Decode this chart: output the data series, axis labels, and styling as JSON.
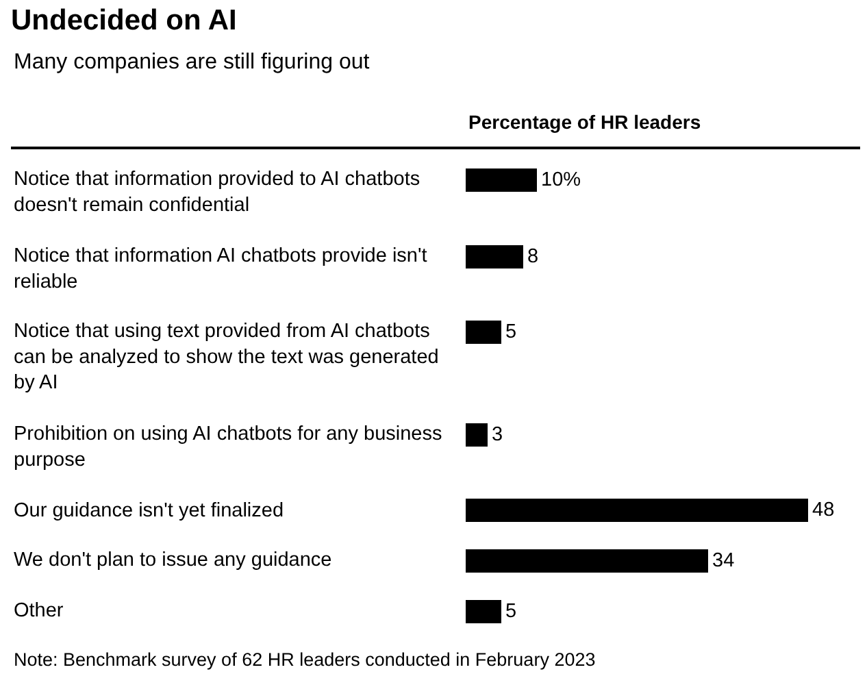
{
  "chart_data": {
    "type": "bar",
    "orientation": "horizontal",
    "title": "Undecided on AI",
    "subtitle": "Many companies are still figuring out",
    "xlabel": "Percentage of HR leaders",
    "categories": [
      "Notice that information provided to AI chatbots doesn't remain confidential",
      "Notice that information AI chatbots provide isn't reliable",
      "Notice that using text provided from AI chatbots can be analyzed to show the text was generated by AI",
      "Prohibition on using AI chatbots for any business purpose",
      "Our guidance isn't yet finalized",
      "We don't plan to issue any guidance",
      "Other"
    ],
    "values": [
      10,
      8,
      5,
      3,
      48,
      34,
      5
    ],
    "value_labels": [
      "10%",
      "8",
      "5",
      "3",
      "48",
      "34",
      "5"
    ],
    "color": "#000000",
    "annotations": [
      "Note: Benchmark survey of 62 HR leaders conducted in February 2023"
    ],
    "tick_labels": "y"
  }
}
